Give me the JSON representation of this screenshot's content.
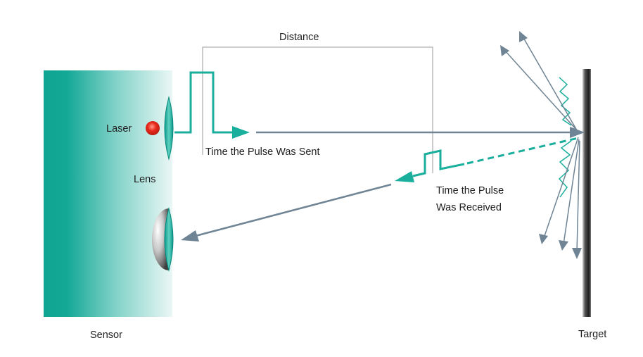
{
  "labels": {
    "distance": "Distance",
    "laser": "Laser",
    "lens": "Lens",
    "pulse_sent": "Time the Pulse Was Sent",
    "pulse_received_line1": "Time the Pulse",
    "pulse_received_line2": "Was Received",
    "sensor": "Sensor",
    "target": "Target"
  },
  "colors": {
    "teal": "#1aae9c",
    "teal_dark": "#0a9a8a",
    "beam": "#6f8494",
    "laser_red": "#e8281a",
    "target_dark": "#2c2c2c",
    "guide_line": "#9a9a9a"
  }
}
